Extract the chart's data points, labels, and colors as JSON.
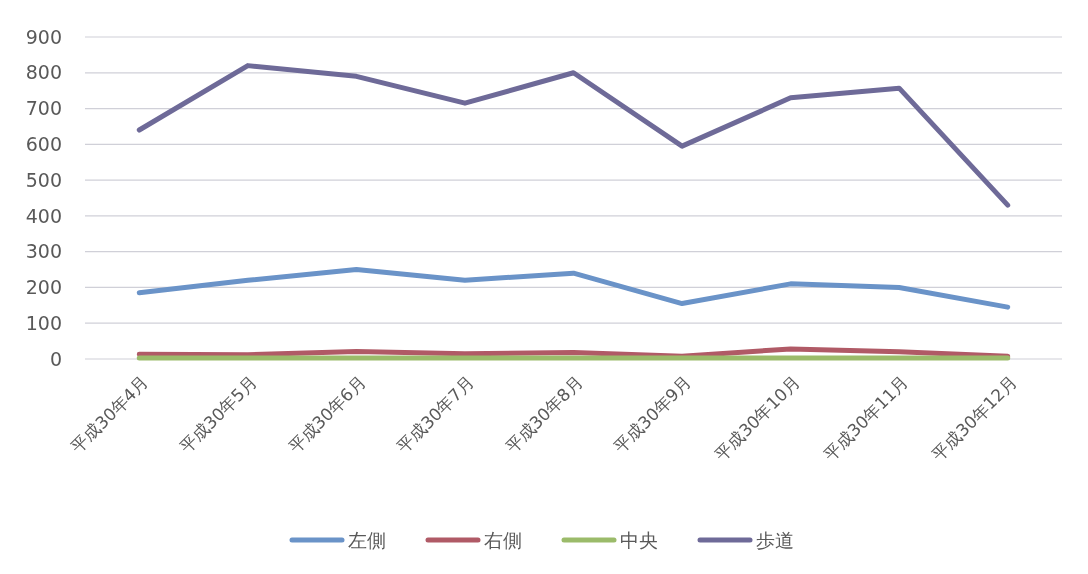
{
  "chart_data": {
    "type": "line",
    "categories": [
      "平成30年4月",
      "平成30年5月",
      "平成30年6月",
      "平成30年7月",
      "平成30年8月",
      "平成30年9月",
      "平成30年10月",
      "平成30年11月",
      "平成30年12月"
    ],
    "series": [
      {
        "name": "左側",
        "color": "#6a93c8",
        "values": [
          185,
          220,
          250,
          220,
          240,
          155,
          210,
          200,
          145
        ]
      },
      {
        "name": "右側",
        "color": "#b05a66",
        "values": [
          13,
          12,
          21,
          15,
          18,
          8,
          28,
          20,
          8
        ]
      },
      {
        "name": "中央",
        "color": "#9bbb6a",
        "values": [
          3,
          3,
          3,
          3,
          3,
          3,
          3,
          3,
          3
        ]
      },
      {
        "name": "歩道",
        "color": "#6e6a98",
        "values": [
          640,
          820,
          790,
          715,
          800,
          595,
          730,
          757,
          430
        ]
      }
    ],
    "ylim": [
      0,
      900
    ],
    "yticks": [
      0,
      100,
      200,
      300,
      400,
      500,
      600,
      700,
      800,
      900
    ],
    "grid": "y",
    "legend": "bottom"
  }
}
